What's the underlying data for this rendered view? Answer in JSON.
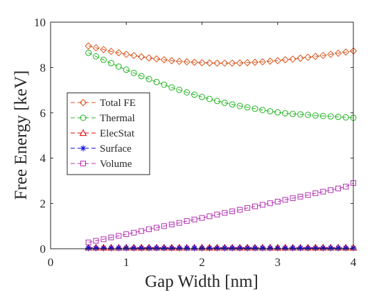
{
  "chart_data": {
    "type": "line",
    "title": "",
    "xlabel": "Gap Width [nm]",
    "ylabel": "Free Energy [keV]",
    "xlim": [
      0,
      4
    ],
    "ylim": [
      0,
      10
    ],
    "xticks": [
      "0",
      "1",
      "2",
      "3",
      "4"
    ],
    "yticks": [
      "0",
      "2",
      "4",
      "6",
      "8",
      "10"
    ],
    "grid": false,
    "legend_position": "left",
    "x": [
      0.5,
      0.6,
      0.7,
      0.8,
      0.9,
      1.0,
      1.1,
      1.2,
      1.3,
      1.4,
      1.5,
      1.6,
      1.7,
      1.8,
      1.9,
      2.0,
      2.1,
      2.2,
      2.3,
      2.4,
      2.5,
      2.6,
      2.7,
      2.8,
      2.9,
      3.0,
      3.1,
      3.2,
      3.3,
      3.4,
      3.5,
      3.6,
      3.7,
      3.8,
      3.9,
      4.0
    ],
    "series": [
      {
        "name": "Total FE",
        "color": "#D95319",
        "marker": "diamond",
        "values": [
          8.95,
          8.87,
          8.79,
          8.71,
          8.65,
          8.58,
          8.53,
          8.47,
          8.42,
          8.38,
          8.34,
          8.3,
          8.27,
          8.25,
          8.23,
          8.21,
          8.2,
          8.19,
          8.19,
          8.19,
          8.2,
          8.21,
          8.23,
          8.25,
          8.28,
          8.3,
          8.34,
          8.37,
          8.41,
          8.45,
          8.49,
          8.53,
          8.58,
          8.63,
          8.68,
          8.73
        ]
      },
      {
        "name": "Thermal",
        "color": "#22B422",
        "marker": "circle",
        "values": [
          8.65,
          8.49,
          8.34,
          8.19,
          8.04,
          7.9,
          7.76,
          7.62,
          7.49,
          7.36,
          7.24,
          7.12,
          7.01,
          6.9,
          6.8,
          6.7,
          6.61,
          6.52,
          6.44,
          6.37,
          6.3,
          6.24,
          6.18,
          6.12,
          6.07,
          6.02,
          5.98,
          5.95,
          5.93,
          5.91,
          5.88,
          5.86,
          5.84,
          5.82,
          5.8,
          5.78
        ]
      },
      {
        "name": "ElecStat",
        "color": "#E00000",
        "marker": "triangle",
        "values": [
          0.05,
          0.05,
          0.05,
          0.05,
          0.05,
          0.05,
          0.05,
          0.05,
          0.05,
          0.05,
          0.05,
          0.05,
          0.05,
          0.05,
          0.05,
          0.05,
          0.05,
          0.05,
          0.05,
          0.05,
          0.05,
          0.05,
          0.05,
          0.05,
          0.05,
          0.05,
          0.05,
          0.05,
          0.05,
          0.05,
          0.05,
          0.05,
          0.05,
          0.05,
          0.05,
          0.05
        ]
      },
      {
        "name": "Surface",
        "color": "#0000E0",
        "marker": "asterisk",
        "values": [
          0.03,
          0.03,
          0.03,
          0.03,
          0.03,
          0.03,
          0.03,
          0.03,
          0.03,
          0.03,
          0.03,
          0.03,
          0.03,
          0.03,
          0.03,
          0.03,
          0.03,
          0.03,
          0.03,
          0.03,
          0.03,
          0.03,
          0.03,
          0.03,
          0.03,
          0.03,
          0.03,
          0.03,
          0.03,
          0.03,
          0.03,
          0.03,
          0.03,
          0.03,
          0.03,
          0.03
        ]
      },
      {
        "name": "Volume",
        "color": "#B030B0",
        "marker": "square",
        "values": [
          0.28,
          0.35,
          0.42,
          0.5,
          0.57,
          0.64,
          0.71,
          0.78,
          0.86,
          0.93,
          1.0,
          1.07,
          1.14,
          1.22,
          1.29,
          1.36,
          1.43,
          1.51,
          1.58,
          1.65,
          1.72,
          1.8,
          1.87,
          1.94,
          2.01,
          2.08,
          2.16,
          2.23,
          2.3,
          2.37,
          2.45,
          2.52,
          2.59,
          2.66,
          2.74,
          2.9
        ]
      }
    ]
  }
}
